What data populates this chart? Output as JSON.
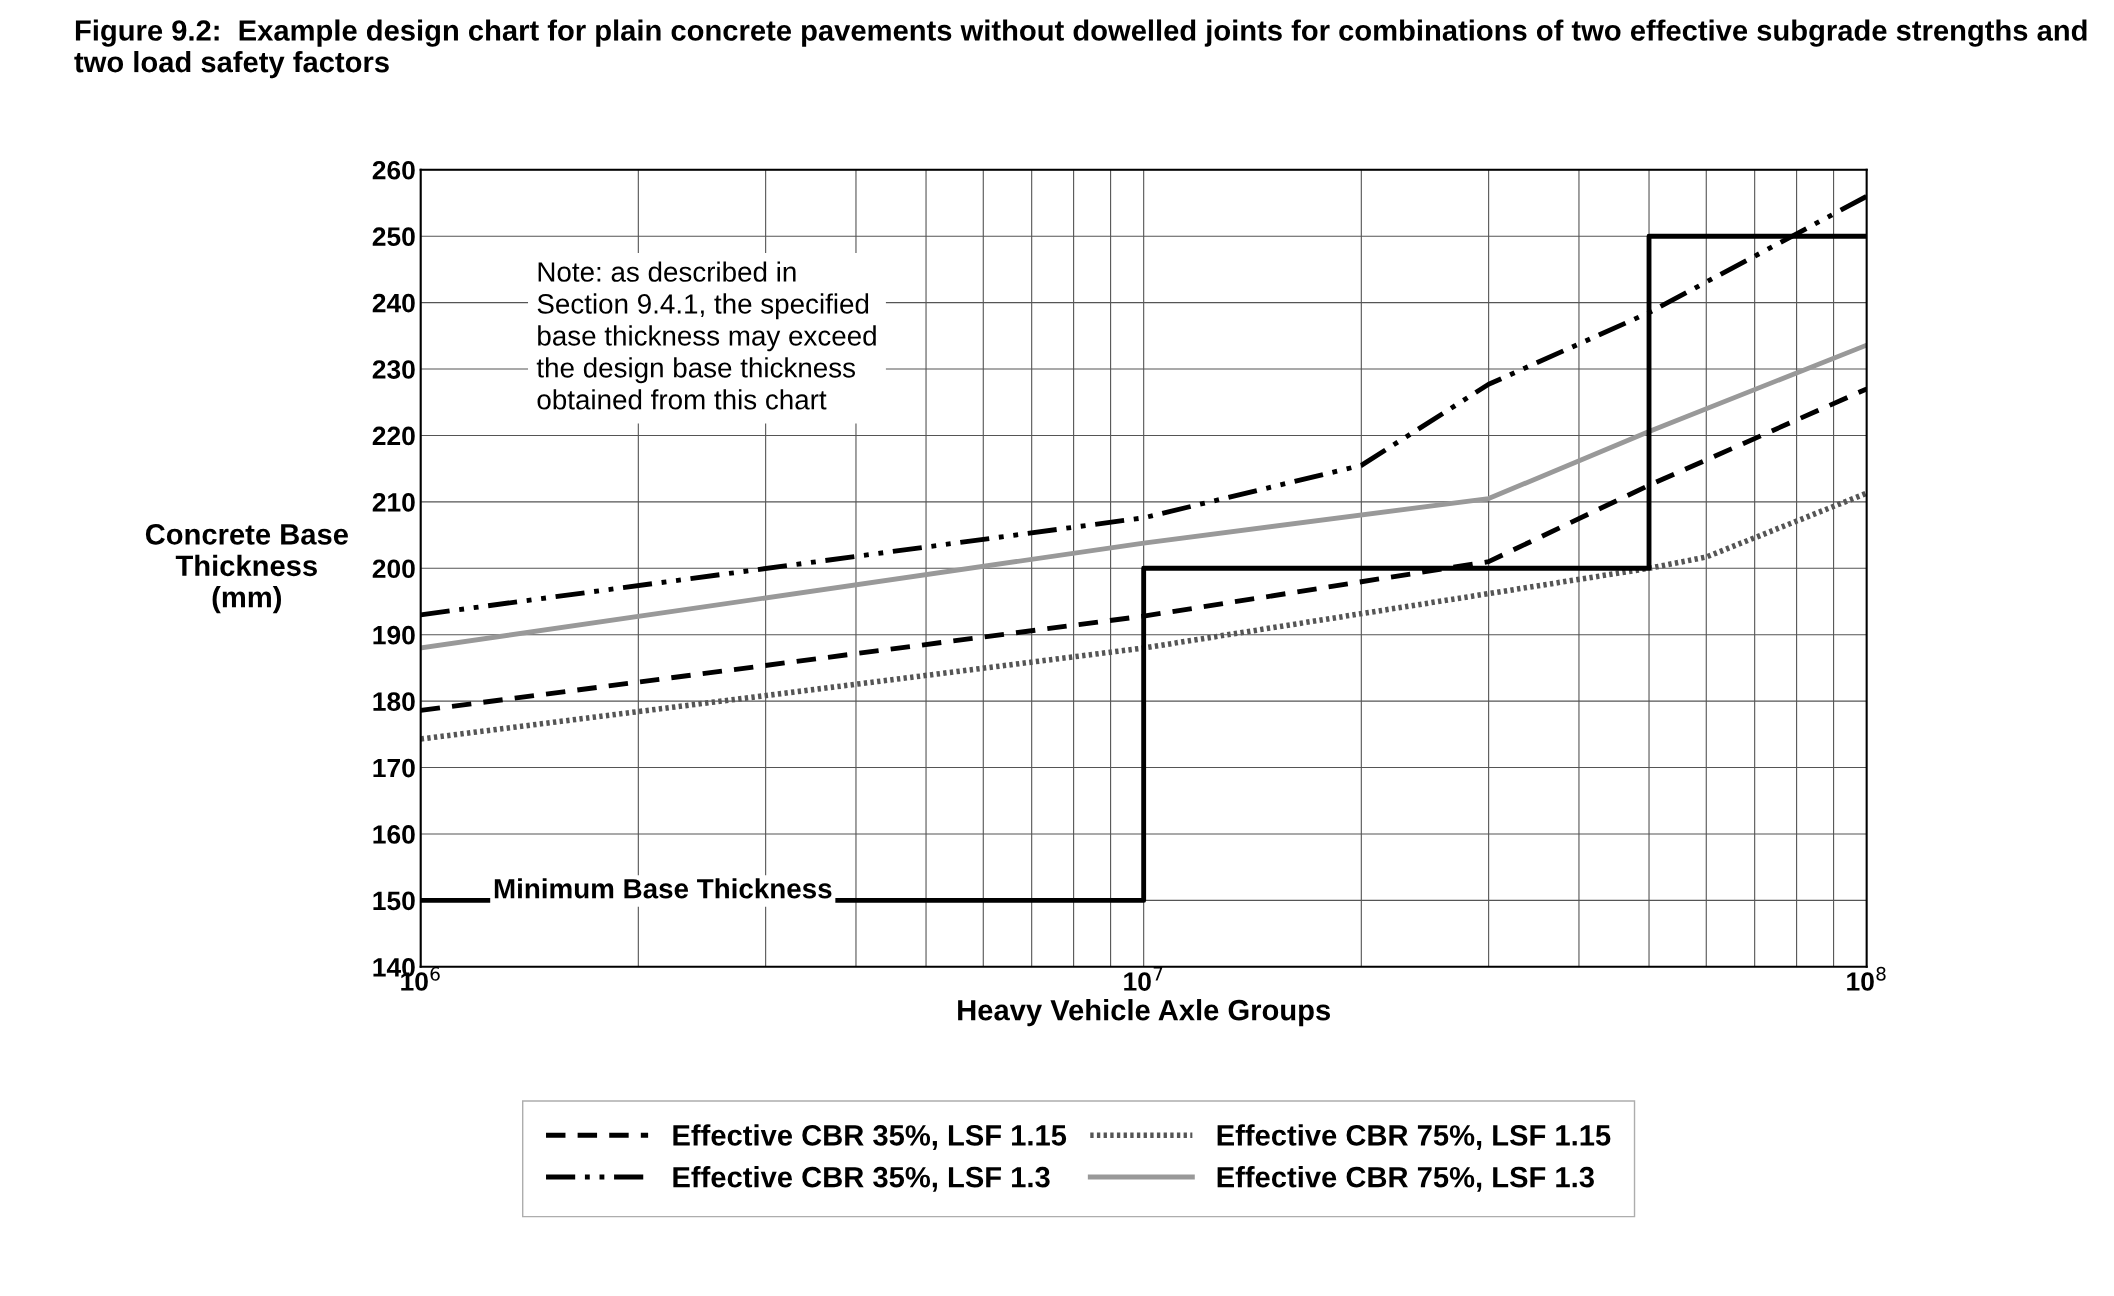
{
  "chart_data": {
    "type": "line",
    "title": "Figure 9.2:  Example design chart for plain concrete pavements without dowelled joints for combinations of two effective subgrade strengths and two load safety factors",
    "xlabel": "Heavy Vehicle Axle Groups",
    "ylabel": "Concrete Base\nThickness\n(mm)",
    "log": "x",
    "grid": true,
    "legend": "bottom",
    "marker": "none",
    "xlim": [
      1000000,
      100000000
    ],
    "ylim": [
      140,
      260
    ],
    "xticks": [
      {
        "value": 1000000,
        "label": "10$^{6}$"
      },
      {
        "value": 2000000,
        "label": null
      },
      {
        "value": 3000000,
        "label": null
      },
      {
        "value": 4000000,
        "label": null
      },
      {
        "value": 5000000,
        "label": null
      },
      {
        "value": 6000000,
        "label": null
      },
      {
        "value": 7000000,
        "label": null
      },
      {
        "value": 8000000,
        "label": null
      },
      {
        "value": 9000000,
        "label": null
      },
      {
        "value": 10000000,
        "label": "10$^{7}$"
      },
      {
        "value": 20000000,
        "label": null
      },
      {
        "value": 30000000,
        "label": null
      },
      {
        "value": 40000000,
        "label": null
      },
      {
        "value": 50000000,
        "label": null
      },
      {
        "value": 60000000,
        "label": null
      },
      {
        "value": 70000000,
        "label": null
      },
      {
        "value": 80000000,
        "label": null
      },
      {
        "value": 90000000,
        "label": null
      },
      {
        "value": 100000000,
        "label": "10$^{8}$"
      }
    ],
    "yticks": [
      140,
      150,
      160,
      170,
      180,
      190,
      200,
      210,
      220,
      230,
      240,
      250,
      260
    ],
    "series": [
      {
        "name": "Effective CBR 35%, LSF 1.15",
        "color": "#000000",
        "line_style": "dashed",
        "x": [
          1000000,
          10000000,
          30000000,
          50000000,
          100000000
        ],
        "values": [
          178.6,
          192.8,
          201,
          212.5,
          227
        ]
      },
      {
        "name": "Effective CBR 35%, LSF 1.3",
        "color": "#000000",
        "line_style": "dashdot",
        "x": [
          1000000,
          10000000,
          20000000,
          30000000,
          50000000,
          100000000
        ],
        "values": [
          193,
          207.6,
          215.5,
          227.7,
          238.5,
          256
        ]
      },
      {
        "name": "Effective CBR 75%, LSF 1.15",
        "color": "#555555",
        "line_style": "dotted",
        "x": [
          1000000,
          10000000,
          50000000,
          60000000,
          100000000
        ],
        "values": [
          174.3,
          188,
          200,
          201.7,
          211.3
        ]
      },
      {
        "name": "Effective CBR 75%, LSF 1.3",
        "color": "#999999",
        "line_style": "solid",
        "x": [
          1000000,
          10000000,
          30000000,
          50000000,
          100000000
        ],
        "values": [
          188,
          203.8,
          210.5,
          220.6,
          233.6
        ]
      },
      {
        "type": "step",
        "color": "#000000",
        "line_style": "solid",
        "x": [
          1000000,
          10000000,
          50000000,
          100000000
        ],
        "values": [
          150,
          200,
          250,
          250
        ]
      }
    ],
    "annotations": [
      "Minimum Base Thickness",
      "Note: as described in\nSection 9.4.1, the specified\nbase thickness may exceed\nthe design base thickness\nobtained from this chart"
    ]
  }
}
